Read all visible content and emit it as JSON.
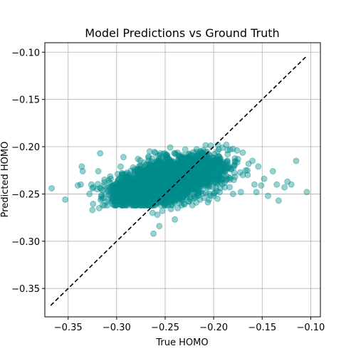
{
  "chart_data": {
    "type": "scatter",
    "title": "Model Predictions vs Ground Truth",
    "xlabel": "True HOMO",
    "ylabel": "Predicted HOMO",
    "xlim": [
      -0.374,
      -0.09
    ],
    "ylim": [
      -0.38,
      -0.09
    ],
    "xticks": [
      -0.35,
      -0.3,
      -0.25,
      -0.2,
      -0.15,
      -0.1
    ],
    "yticks": [
      -0.35,
      -0.3,
      -0.25,
      -0.2,
      -0.15,
      -0.1
    ],
    "xtick_labels": [
      "−0.35",
      "−0.30",
      "−0.25",
      "−0.20",
      "−0.15",
      "−0.10"
    ],
    "ytick_labels": [
      "−0.35",
      "−0.30",
      "−0.25",
      "−0.20",
      "−0.15",
      "−0.10"
    ],
    "grid": true,
    "marker_color": "#008b8b",
    "marker_alpha": 0.4,
    "reference_line": {
      "x": [
        -0.368,
        -0.104
      ],
      "y": [
        -0.368,
        -0.104
      ],
      "style": "dashed",
      "color": "#000000"
    },
    "series": [
      {
        "points": [
          [
            -0.367,
            -0.244
          ],
          [
            -0.353,
            -0.256
          ],
          [
            -0.34,
            -0.241
          ],
          [
            -0.337,
            -0.24
          ],
          [
            -0.336,
            -0.221
          ],
          [
            -0.335,
            -0.226
          ],
          [
            -0.328,
            -0.25
          ],
          [
            -0.326,
            -0.24
          ],
          [
            -0.325,
            -0.267
          ],
          [
            -0.324,
            -0.243
          ],
          [
            -0.32,
            -0.245
          ],
          [
            -0.319,
            -0.226
          ],
          [
            -0.318,
            -0.265
          ],
          [
            -0.317,
            -0.207
          ],
          [
            -0.316,
            -0.253
          ],
          [
            -0.313,
            -0.241
          ],
          [
            -0.31,
            -0.244
          ],
          [
            -0.307,
            -0.238
          ],
          [
            -0.304,
            -0.257
          ],
          [
            -0.302,
            -0.24
          ],
          [
            -0.299,
            -0.229
          ],
          [
            -0.297,
            -0.261
          ],
          [
            -0.295,
            -0.238
          ],
          [
            -0.293,
            -0.211
          ],
          [
            -0.291,
            -0.248
          ],
          [
            -0.288,
            -0.257
          ],
          [
            -0.285,
            -0.236
          ],
          [
            -0.283,
            -0.222
          ],
          [
            -0.28,
            -0.257
          ],
          [
            -0.278,
            -0.213
          ],
          [
            -0.276,
            -0.252
          ],
          [
            -0.273,
            -0.242
          ],
          [
            -0.27,
            -0.219
          ],
          [
            -0.268,
            -0.262
          ],
          [
            -0.266,
            -0.205
          ],
          [
            -0.263,
            -0.27
          ],
          [
            -0.262,
            -0.292
          ],
          [
            -0.258,
            -0.272
          ],
          [
            -0.256,
            -0.284
          ],
          [
            -0.253,
            -0.268
          ],
          [
            -0.25,
            -0.258
          ],
          [
            -0.247,
            -0.262
          ],
          [
            -0.244,
            -0.266
          ],
          [
            -0.24,
            -0.277
          ],
          [
            -0.237,
            -0.265
          ],
          [
            -0.233,
            -0.262
          ],
          [
            -0.23,
            -0.261
          ],
          [
            -0.226,
            -0.258
          ],
          [
            -0.222,
            -0.262
          ],
          [
            -0.218,
            -0.259
          ],
          [
            -0.214,
            -0.256
          ],
          [
            -0.21,
            -0.254
          ],
          [
            -0.205,
            -0.256
          ],
          [
            -0.2,
            -0.252
          ],
          [
            -0.196,
            -0.255
          ],
          [
            -0.191,
            -0.201
          ],
          [
            -0.187,
            -0.198
          ],
          [
            -0.183,
            -0.203
          ],
          [
            -0.18,
            -0.25
          ],
          [
            -0.176,
            -0.204
          ],
          [
            -0.172,
            -0.248
          ],
          [
            -0.17,
            -0.23
          ],
          [
            -0.167,
            -0.225
          ],
          [
            -0.164,
            -0.218
          ],
          [
            -0.16,
            -0.215
          ],
          [
            -0.158,
            -0.24
          ],
          [
            -0.156,
            -0.248
          ],
          [
            -0.154,
            -0.221
          ],
          [
            -0.151,
            -0.241
          ],
          [
            -0.148,
            -0.234
          ],
          [
            -0.144,
            -0.252
          ],
          [
            -0.139,
            -0.226
          ],
          [
            -0.135,
            -0.24
          ],
          [
            -0.133,
            -0.257
          ],
          [
            -0.127,
            -0.243
          ],
          [
            -0.124,
            -0.237
          ],
          [
            -0.12,
            -0.24
          ],
          [
            -0.115,
            -0.215
          ],
          [
            -0.104,
            -0.248
          ]
        ],
        "dense_cluster": {
          "x_range": [
            -0.325,
            -0.165
          ],
          "y_mean": -0.235,
          "y_spread": 0.018,
          "count": 3500
        }
      }
    ]
  }
}
